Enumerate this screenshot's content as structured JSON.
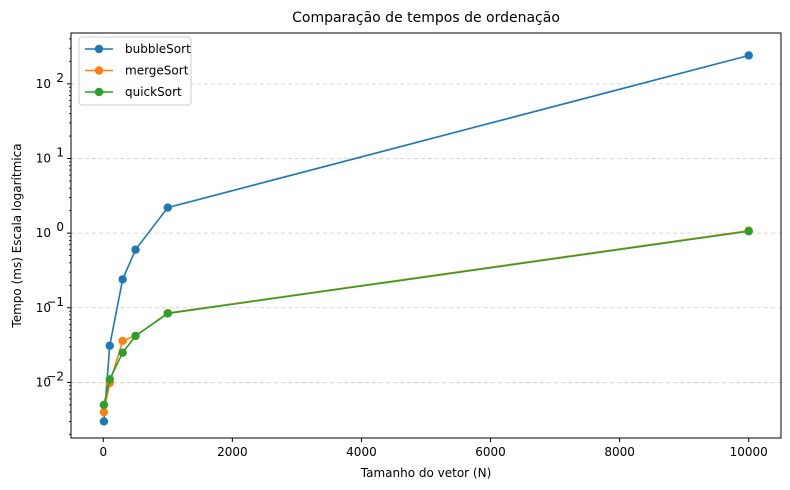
{
  "chart_data": {
    "type": "line",
    "title": "Comparação de tempos de ordenação",
    "xlabel": "Tamanho do vetor (N)",
    "ylabel": "Tempo (ms) Escala logarítmica",
    "yscale": "log",
    "xlim": [
      -500,
      10500
    ],
    "ylim": [
      0.0018,
      480
    ],
    "x_ticks": [
      0,
      2000,
      4000,
      6000,
      8000,
      10000
    ],
    "x_tick_labels": [
      "0",
      "2000",
      "4000",
      "6000",
      "8000",
      "10000"
    ],
    "y_ticks": [
      0.01,
      0.1,
      1,
      10,
      100
    ],
    "y_tick_labels": [
      [
        "10",
        "−2"
      ],
      [
        "10",
        "−1"
      ],
      [
        "10",
        "0"
      ],
      [
        "10",
        "1"
      ],
      [
        "10",
        "2"
      ]
    ],
    "grid": "y-dashed",
    "legend_position": "top-left",
    "x": [
      10,
      100,
      300,
      500,
      1000,
      10000
    ],
    "series": [
      {
        "name": "bubbleSort",
        "color": "#1f77b4",
        "values": [
          0.003,
          0.031,
          0.24,
          0.6,
          2.2,
          240
        ]
      },
      {
        "name": "mergeSort",
        "color": "#ff7f0e",
        "values": [
          0.004,
          0.0098,
          0.036,
          0.042,
          0.085,
          1.08
        ]
      },
      {
        "name": "quickSort",
        "color": "#2ca02c",
        "values": [
          0.005,
          0.011,
          0.025,
          0.042,
          0.084,
          1.06
        ]
      }
    ]
  }
}
